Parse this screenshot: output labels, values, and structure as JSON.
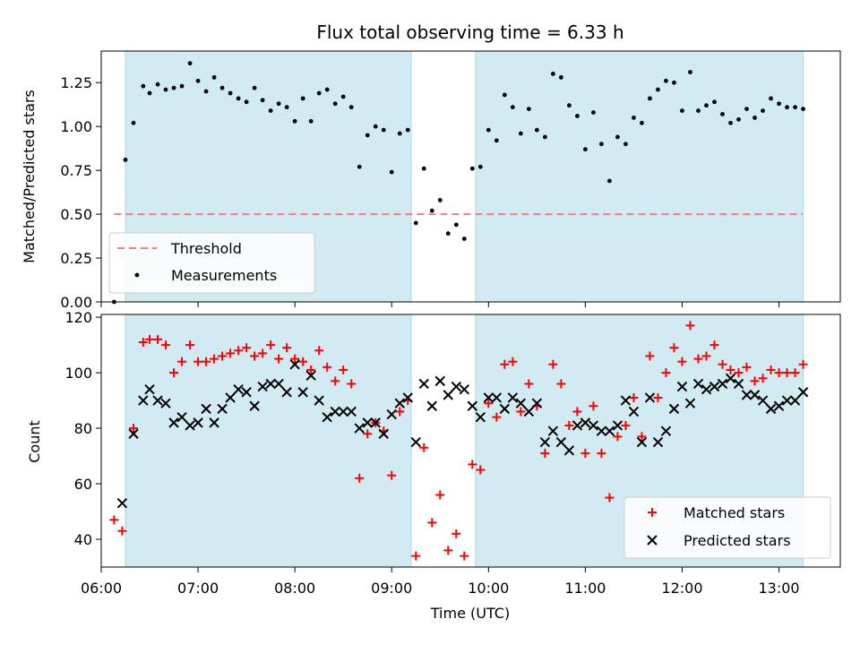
{
  "title": "Flux total observing time = 6.33 h",
  "xlabel": "Time (UTC)",
  "colors": {
    "shade": "#add8e6",
    "threshold": "#f08080",
    "measurements": "#000000",
    "matched": "#ff0000",
    "predicted": "#000000"
  },
  "chart_data": [
    {
      "type": "scatter",
      "ylabel": "Matched/Predicted stars",
      "xlim": [
        "06:00",
        "13:38"
      ],
      "ylim": [
        0,
        1.43
      ],
      "yticks": [
        0,
        0.25,
        0.5,
        0.75,
        1.0,
        1.25
      ],
      "ytick_labels": [
        "0.00",
        "0.25",
        "0.50",
        "0.75",
        "1.00",
        "1.25"
      ],
      "shaded_ranges": [
        [
          "06:15",
          "09:12"
        ],
        [
          "09:52",
          "13:15"
        ]
      ],
      "threshold": {
        "name": "Threshold",
        "y": 0.5,
        "x_range": [
          "06:08",
          "13:15"
        ],
        "style": "dashed"
      },
      "legend": {
        "position": "lower-left",
        "entries": [
          "Threshold",
          "Measurements"
        ]
      },
      "series": [
        {
          "name": "Measurements",
          "marker": "dot",
          "x": [
            "06:08",
            "06:15",
            "06:20",
            "06:26",
            "06:30",
            "06:35",
            "06:40",
            "06:45",
            "06:50",
            "06:55",
            "07:00",
            "07:05",
            "07:10",
            "07:15",
            "07:20",
            "07:25",
            "07:30",
            "07:35",
            "07:40",
            "07:45",
            "07:50",
            "07:55",
            "08:00",
            "08:05",
            "08:10",
            "08:15",
            "08:20",
            "08:25",
            "08:30",
            "08:35",
            "08:40",
            "08:45",
            "08:50",
            "08:55",
            "09:00",
            "09:05",
            "09:10",
            "09:15",
            "09:20",
            "09:25",
            "09:30",
            "09:35",
            "09:40",
            "09:45",
            "09:50",
            "09:55",
            "10:00",
            "10:05",
            "10:10",
            "10:15",
            "10:20",
            "10:25",
            "10:30",
            "10:35",
            "10:40",
            "10:45",
            "10:50",
            "10:55",
            "11:00",
            "11:05",
            "11:10",
            "11:15",
            "11:20",
            "11:25",
            "11:30",
            "11:35",
            "11:40",
            "11:45",
            "11:50",
            "11:55",
            "12:00",
            "12:05",
            "12:10",
            "12:15",
            "12:20",
            "12:25",
            "12:30",
            "12:35",
            "12:40",
            "12:45",
            "12:50",
            "12:55",
            "13:00",
            "13:05",
            "13:10",
            "13:15"
          ],
          "y": [
            0.0,
            0.81,
            1.02,
            1.23,
            1.19,
            1.24,
            1.21,
            1.22,
            1.23,
            1.36,
            1.26,
            1.2,
            1.28,
            1.22,
            1.19,
            1.16,
            1.14,
            1.22,
            1.15,
            1.09,
            1.13,
            1.11,
            1.03,
            1.16,
            1.03,
            1.19,
            1.21,
            1.13,
            1.17,
            1.11,
            0.77,
            0.95,
            1.0,
            0.98,
            0.74,
            0.96,
            0.98,
            0.45,
            0.76,
            0.52,
            0.58,
            0.39,
            0.44,
            0.36,
            0.76,
            0.77,
            0.98,
            0.92,
            1.18,
            1.11,
            0.96,
            1.1,
            0.98,
            0.94,
            1.3,
            1.28,
            1.12,
            1.06,
            0.87,
            1.08,
            0.9,
            0.69,
            0.94,
            0.9,
            1.05,
            1.02,
            1.16,
            1.21,
            1.26,
            1.25,
            1.09,
            1.31,
            1.09,
            1.12,
            1.14,
            1.07,
            1.02,
            1.04,
            1.1,
            1.05,
            1.09,
            1.16,
            1.13,
            1.11,
            1.11,
            1.1
          ]
        }
      ]
    },
    {
      "type": "scatter",
      "ylabel": "Count",
      "xlabel": "Time (UTC)",
      "xlim": [
        "06:00",
        "13:38"
      ],
      "ylim": [
        30,
        121
      ],
      "yticks": [
        40,
        60,
        80,
        100,
        120
      ],
      "xtick_labels": [
        "06:00",
        "07:00",
        "08:00",
        "09:00",
        "10:00",
        "11:00",
        "12:00",
        "13:00"
      ],
      "shaded_ranges": [
        [
          "06:15",
          "09:12"
        ],
        [
          "09:52",
          "13:15"
        ]
      ],
      "legend": {
        "position": "lower-right",
        "entries": [
          "Matched stars",
          "Predicted stars"
        ]
      },
      "series": [
        {
          "name": "Matched stars",
          "marker": "plus",
          "x": [
            "06:08",
            "06:13",
            "06:20",
            "06:26",
            "06:30",
            "06:35",
            "06:40",
            "06:45",
            "06:50",
            "06:55",
            "07:00",
            "07:05",
            "07:10",
            "07:15",
            "07:20",
            "07:25",
            "07:30",
            "07:35",
            "07:40",
            "07:45",
            "07:50",
            "07:55",
            "08:00",
            "08:05",
            "08:10",
            "08:15",
            "08:20",
            "08:25",
            "08:30",
            "08:35",
            "08:40",
            "08:45",
            "08:50",
            "08:55",
            "09:00",
            "09:05",
            "09:10",
            "09:15",
            "09:20",
            "09:25",
            "09:30",
            "09:35",
            "09:40",
            "09:45",
            "09:50",
            "09:55",
            "10:00",
            "10:05",
            "10:10",
            "10:15",
            "10:20",
            "10:25",
            "10:30",
            "10:35",
            "10:40",
            "10:45",
            "10:50",
            "10:55",
            "11:00",
            "11:05",
            "11:10",
            "11:15",
            "11:20",
            "11:25",
            "11:30",
            "11:35",
            "11:40",
            "11:45",
            "11:50",
            "11:55",
            "12:00",
            "12:05",
            "12:10",
            "12:15",
            "12:20",
            "12:25",
            "12:30",
            "12:35",
            "12:40",
            "12:45",
            "12:50",
            "12:55",
            "13:00",
            "13:05",
            "13:10",
            "13:15"
          ],
          "y": [
            47,
            43,
            80,
            111,
            112,
            112,
            110,
            100,
            104,
            110,
            104,
            104,
            105,
            106,
            107,
            108,
            109,
            106,
            107,
            110,
            105,
            109,
            105,
            104,
            101,
            108,
            102,
            97,
            101,
            96,
            62,
            78,
            82,
            79,
            63,
            86,
            90,
            34,
            73,
            46,
            56,
            36,
            42,
            34,
            67,
            65,
            89,
            84,
            103,
            104,
            86,
            96,
            88,
            71,
            103,
            96,
            81,
            86,
            71,
            88,
            71,
            55,
            77,
            81,
            91,
            77,
            106,
            91,
            100,
            109,
            104,
            117,
            105,
            106,
            110,
            103,
            101,
            100,
            102,
            97,
            98,
            101,
            100,
            100,
            100,
            103
          ]
        },
        {
          "name": "Predicted stars",
          "marker": "x",
          "x": [
            "06:13",
            "06:20",
            "06:26",
            "06:30",
            "06:35",
            "06:40",
            "06:45",
            "06:50",
            "06:55",
            "07:00",
            "07:05",
            "07:10",
            "07:15",
            "07:20",
            "07:25",
            "07:30",
            "07:35",
            "07:40",
            "07:45",
            "07:50",
            "07:55",
            "08:00",
            "08:05",
            "08:10",
            "08:15",
            "08:20",
            "08:25",
            "08:30",
            "08:35",
            "08:40",
            "08:45",
            "08:50",
            "08:55",
            "09:00",
            "09:05",
            "09:10",
            "09:15",
            "09:20",
            "09:25",
            "09:30",
            "09:35",
            "09:40",
            "09:45",
            "09:50",
            "09:55",
            "10:00",
            "10:05",
            "10:10",
            "10:15",
            "10:20",
            "10:25",
            "10:30",
            "10:35",
            "10:40",
            "10:45",
            "10:50",
            "10:55",
            "11:00",
            "11:05",
            "11:10",
            "11:15",
            "11:20",
            "11:25",
            "11:30",
            "11:35",
            "11:40",
            "11:45",
            "11:50",
            "11:55",
            "12:00",
            "12:05",
            "12:10",
            "12:15",
            "12:20",
            "12:25",
            "12:30",
            "12:35",
            "12:40",
            "12:45",
            "12:50",
            "12:55",
            "13:00",
            "13:05",
            "13:10",
            "13:15"
          ],
          "y": [
            53,
            78,
            90,
            94,
            90,
            89,
            82,
            84,
            81,
            82,
            87,
            82,
            87,
            91,
            94,
            93,
            88,
            95,
            96,
            96,
            93,
            103,
            93,
            99,
            90,
            84,
            86,
            86,
            86,
            80,
            82,
            82,
            78,
            85,
            89,
            91,
            75,
            96,
            88,
            97,
            92,
            95,
            94,
            88,
            84,
            91,
            91,
            87,
            91,
            89,
            86,
            89,
            75,
            79,
            75,
            72,
            81,
            82,
            81,
            79,
            79,
            81,
            90,
            86,
            75,
            91,
            75,
            79,
            87,
            95,
            89,
            96,
            94,
            95,
            96,
            98,
            96,
            92,
            92,
            90,
            87,
            88,
            90,
            90,
            93
          ]
        }
      ]
    }
  ]
}
